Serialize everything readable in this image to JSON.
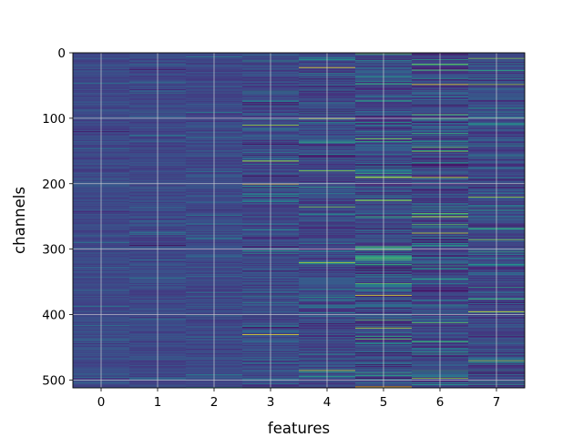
{
  "chart_data": {
    "type": "heatmap",
    "title": "",
    "xlabel": "features",
    "ylabel": "channels",
    "x_ticks": [
      "0",
      "1",
      "2",
      "3",
      "4",
      "5",
      "6",
      "7"
    ],
    "y_ticks": [
      "0",
      "100",
      "200",
      "300",
      "400",
      "500"
    ],
    "n_columns": 8,
    "n_rows": 512,
    "xlim": [
      -0.5,
      7.5
    ],
    "ylim": [
      512,
      0
    ],
    "y_inverted": true,
    "grid": true,
    "colormap": "viridis",
    "column_contrast": [
      0.1,
      0.13,
      0.2,
      0.45,
      0.6,
      0.95,
      0.9,
      0.7
    ],
    "highlight_rows": {
      "0": [],
      "1": [],
      "2": [],
      "3": [
        110,
        165,
        200,
        430
      ],
      "4": [
        22,
        100,
        180,
        235,
        320,
        485
      ],
      "5": [
        190,
        225,
        300,
        370,
        420,
        510
      ],
      "6": [
        48,
        150,
        190,
        250,
        275,
        497
      ],
      "7": [
        8,
        48,
        220,
        285,
        395,
        470
      ]
    }
  }
}
